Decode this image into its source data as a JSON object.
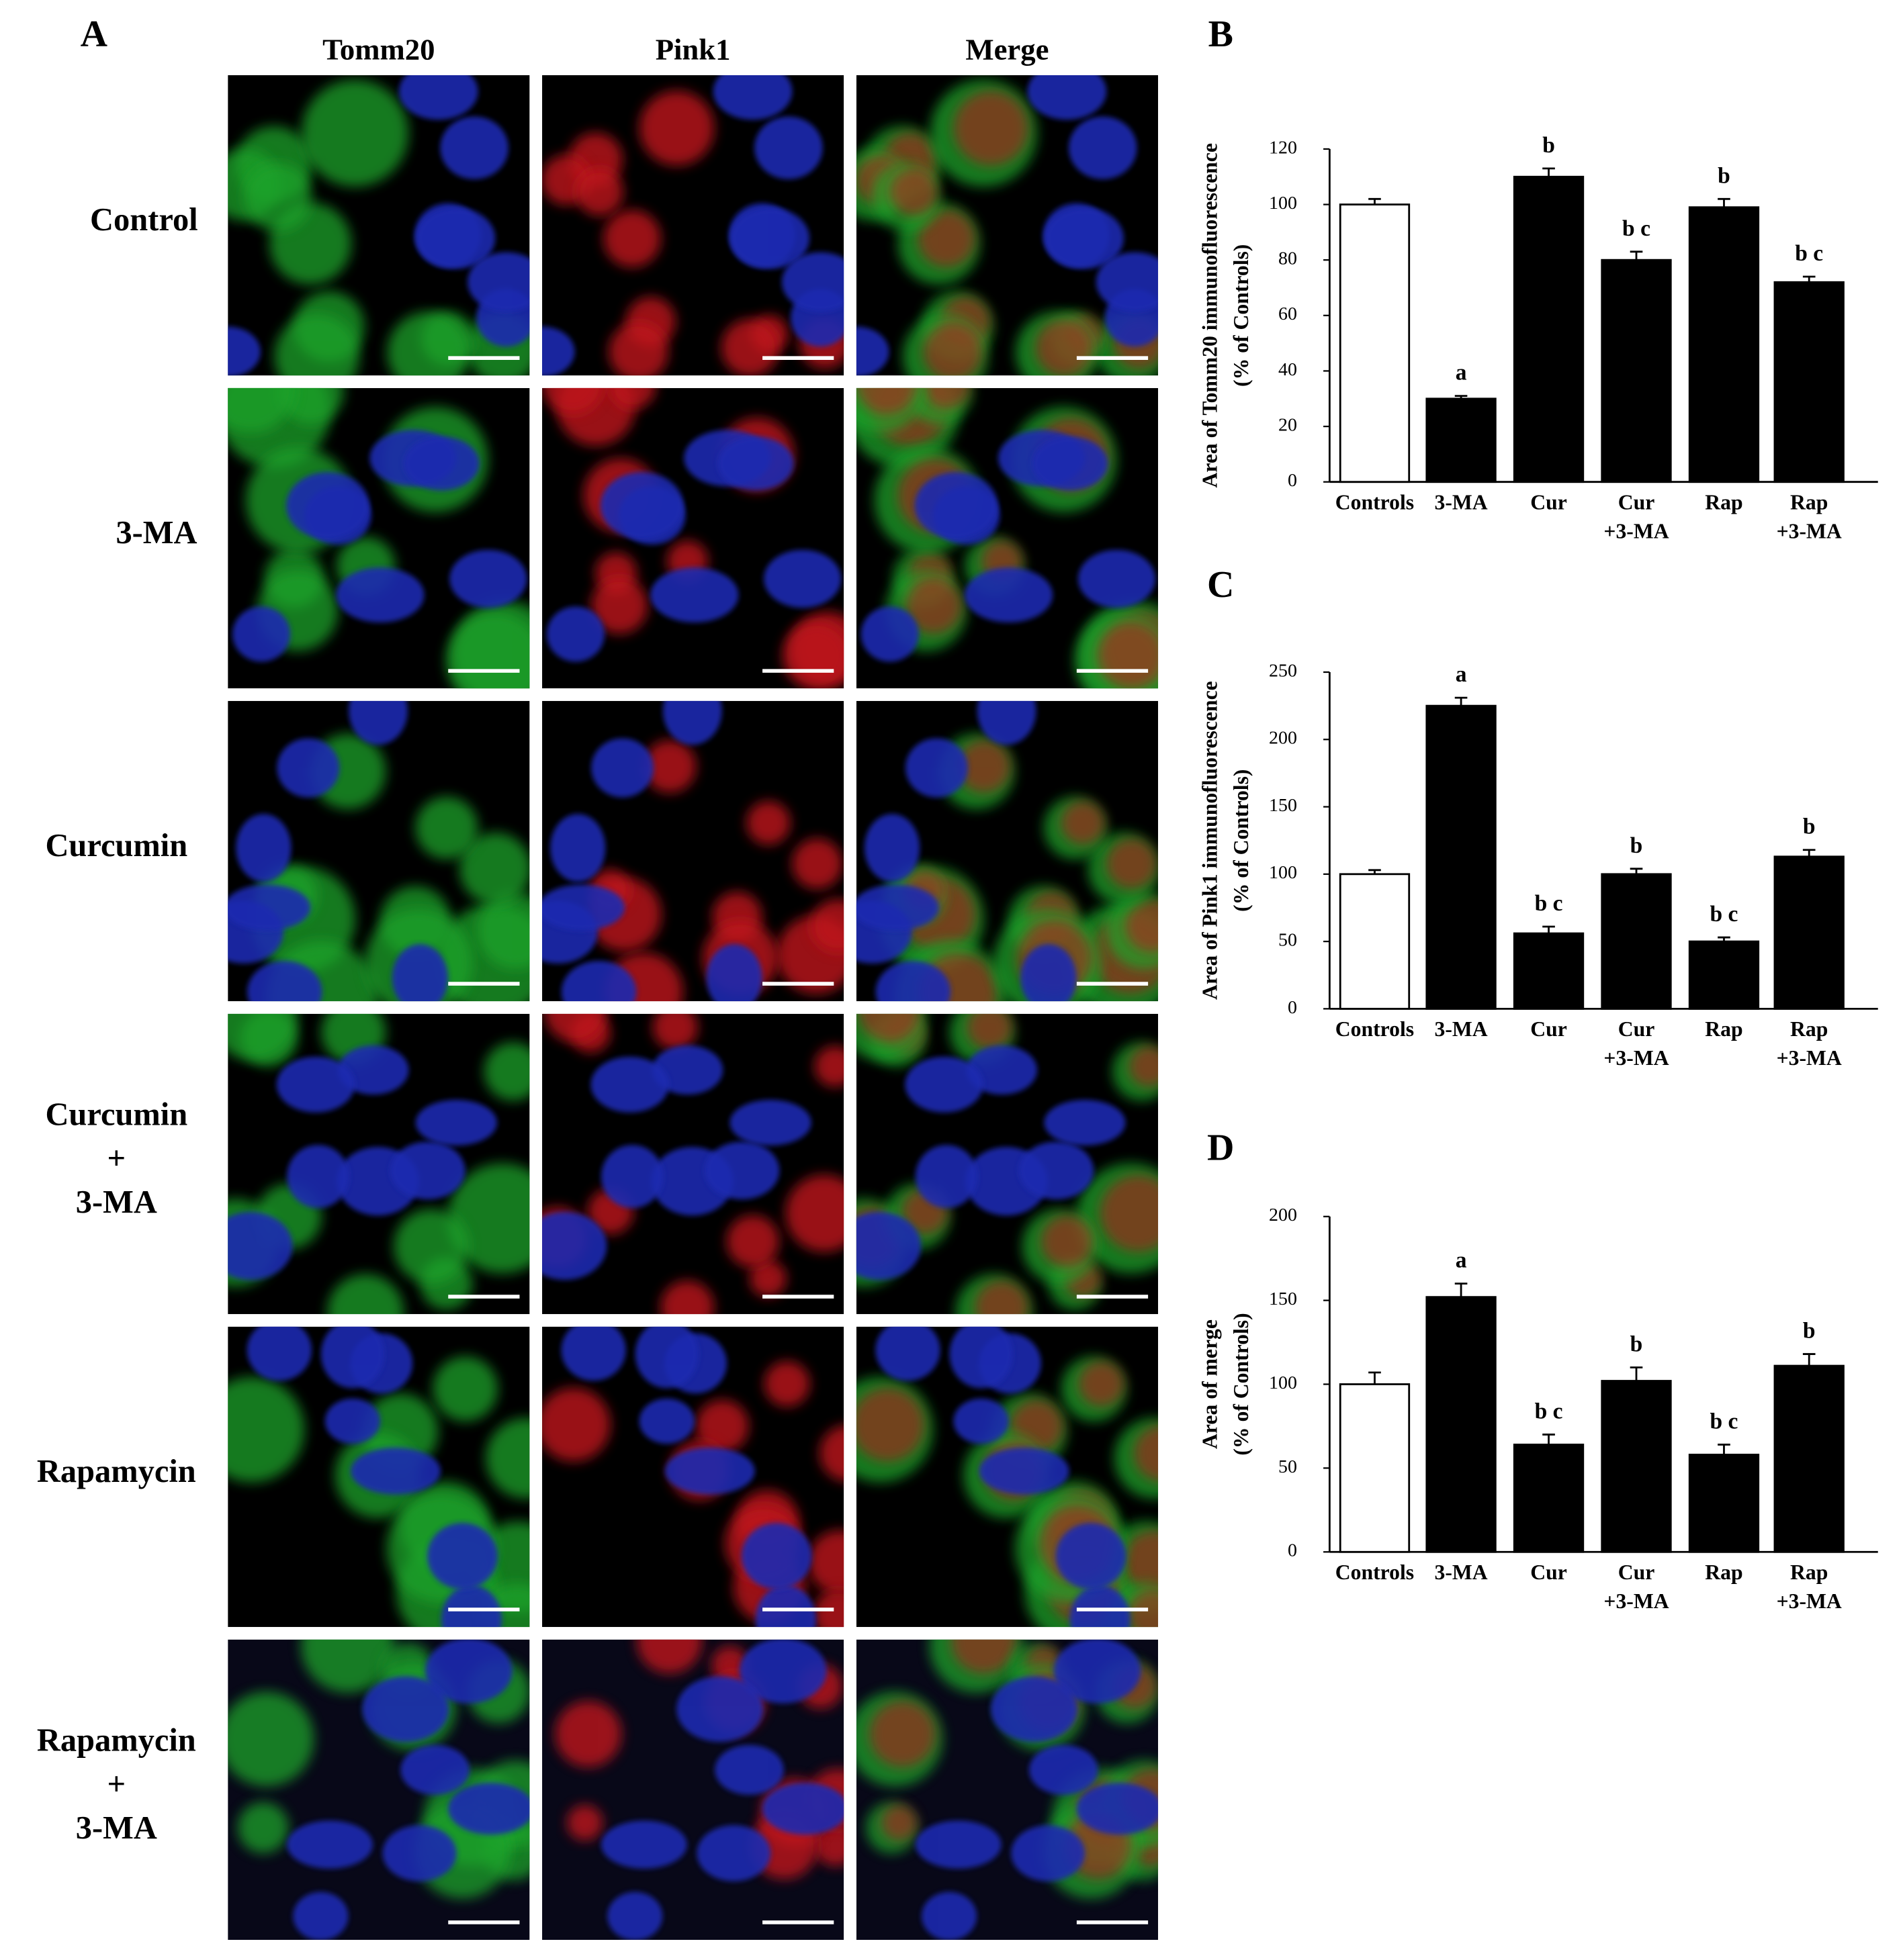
{
  "panel_a": {
    "label": "A",
    "columns": [
      "Tomm20",
      "Pink1",
      "Merge"
    ],
    "rows": [
      [
        "Control"
      ],
      [
        "3-MA"
      ],
      [
        "Curcumin"
      ],
      [
        "Curcumin",
        "+",
        "3-MA"
      ],
      [
        "Rapamycin"
      ],
      [
        "Rapamycin",
        "+",
        "3-MA"
      ]
    ]
  },
  "chart_data": [
    {
      "type": "bar",
      "label": "B",
      "ylabel": [
        "Area of Tomm20 immunofluorescence",
        "(% of Controls)"
      ],
      "categories": [
        [
          "Controls"
        ],
        [
          "3-MA"
        ],
        [
          "Cur"
        ],
        [
          "Cur",
          "+3-MA"
        ],
        [
          "Rap"
        ],
        [
          "Rap",
          "+3-MA"
        ]
      ],
      "values": [
        100,
        30,
        110,
        80,
        99,
        72
      ],
      "errors": [
        2,
        1,
        3,
        3,
        3,
        2
      ],
      "annotations": [
        null,
        "a",
        "b",
        "b c",
        "b",
        "b c"
      ],
      "colors": [
        "#ffffff",
        "#000000",
        "#000000",
        "#000000",
        "#000000",
        "#000000"
      ],
      "ylim": [
        0,
        120
      ],
      "yticks": [
        0,
        20,
        40,
        60,
        80,
        100,
        120
      ]
    },
    {
      "type": "bar",
      "label": "C",
      "ylabel": [
        "Area of Pink1 immunofluorescence",
        "(% of Controls)"
      ],
      "categories": [
        [
          "Controls"
        ],
        [
          "3-MA"
        ],
        [
          "Cur"
        ],
        [
          "Cur",
          "+3-MA"
        ],
        [
          "Rap"
        ],
        [
          "Rap",
          "+3-MA"
        ]
      ],
      "values": [
        100,
        225,
        56,
        100,
        50,
        113
      ],
      "errors": [
        3,
        6,
        5,
        4,
        3,
        5
      ],
      "annotations": [
        null,
        "a",
        "b c",
        "b",
        "b c",
        "b"
      ],
      "colors": [
        "#ffffff",
        "#000000",
        "#000000",
        "#000000",
        "#000000",
        "#000000"
      ],
      "ylim": [
        0,
        250
      ],
      "yticks": [
        0,
        50,
        100,
        150,
        200,
        250
      ]
    },
    {
      "type": "bar",
      "label": "D",
      "ylabel": [
        "Area of merge",
        "(% of Controls)"
      ],
      "categories": [
        [
          "Controls"
        ],
        [
          "3-MA"
        ],
        [
          "Cur"
        ],
        [
          "Cur",
          "+3-MA"
        ],
        [
          "Rap"
        ],
        [
          "Rap",
          "+3-MA"
        ]
      ],
      "values": [
        100,
        152,
        64,
        102,
        58,
        111
      ],
      "errors": [
        7,
        8,
        6,
        8,
        6,
        7
      ],
      "annotations": [
        null,
        "a",
        "b c",
        "b",
        "b c",
        "b"
      ],
      "colors": [
        "#ffffff",
        "#000000",
        "#000000",
        "#000000",
        "#000000",
        "#000000"
      ],
      "ylim": [
        0,
        200
      ],
      "yticks": [
        0,
        50,
        100,
        150,
        200
      ]
    }
  ]
}
